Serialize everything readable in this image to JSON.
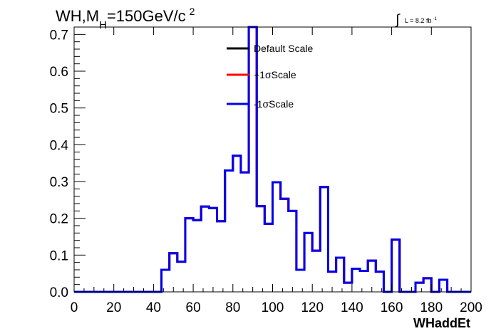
{
  "chart_data": {
    "type": "line",
    "title_main": "WH,M",
    "title_sub": "H",
    "title_rest": "=150GeV/c",
    "title_sup": "2",
    "lumi_label": "L = 8.2 fb",
    "lumi_sup": "-1",
    "xlabel": "WHaddEt",
    "ylabel": "",
    "xlim": [
      0,
      200
    ],
    "ylim": [
      0,
      0.72
    ],
    "x_ticks": [
      "0",
      "20",
      "40",
      "60",
      "80",
      "100",
      "120",
      "140",
      "160",
      "180",
      "200"
    ],
    "y_ticks": [
      "0.0",
      "0.1",
      "0.2",
      "0.3",
      "0.4",
      "0.5",
      "0.6",
      "0.7"
    ],
    "legend_placement": "top-center",
    "bin_width": 4,
    "x": [
      0,
      4,
      8,
      12,
      16,
      20,
      24,
      28,
      32,
      36,
      40,
      44,
      48,
      52,
      56,
      60,
      64,
      68,
      72,
      76,
      80,
      84,
      88,
      92,
      96,
      100,
      104,
      108,
      112,
      116,
      120,
      124,
      128,
      132,
      136,
      140,
      144,
      148,
      152,
      156,
      160,
      164,
      168,
      172,
      176,
      180,
      184,
      188,
      192,
      196
    ],
    "series": [
      {
        "name": "Default Scale",
        "color": "#000000",
        "values": [
          0,
          0,
          0,
          0,
          0,
          0,
          0,
          0,
          0,
          0,
          0,
          0.06,
          0.105,
          0.082,
          0.2,
          0.195,
          0.232,
          0.228,
          0.192,
          0.33,
          0.37,
          0.325,
          0.72,
          0.233,
          0.185,
          0.298,
          0.253,
          0.22,
          0.06,
          0.16,
          0.112,
          0.285,
          0.055,
          0.093,
          0.025,
          0.063,
          0.057,
          0.085,
          0.055,
          0,
          0.142,
          0,
          0,
          0.025,
          0.037,
          0,
          0.033,
          0,
          0,
          0
        ]
      },
      {
        "name": "+1σScale",
        "color": "#ff0000",
        "values": [
          0,
          0,
          0,
          0,
          0,
          0,
          0,
          0,
          0,
          0,
          0,
          0.06,
          0.105,
          0.082,
          0.2,
          0.195,
          0.232,
          0.228,
          0.192,
          0.33,
          0.37,
          0.325,
          0.72,
          0.233,
          0.185,
          0.298,
          0.253,
          0.22,
          0.06,
          0.16,
          0.112,
          0.285,
          0.055,
          0.093,
          0.025,
          0.063,
          0.057,
          0.085,
          0.055,
          0,
          0.142,
          0,
          0,
          0.025,
          0.037,
          0,
          0.033,
          0,
          0,
          0
        ]
      },
      {
        "name": "-1σScale",
        "color": "#0000ee",
        "values": [
          0,
          0,
          0,
          0,
          0,
          0,
          0,
          0,
          0,
          0,
          0,
          0.06,
          0.105,
          0.082,
          0.2,
          0.195,
          0.232,
          0.228,
          0.192,
          0.33,
          0.37,
          0.325,
          0.72,
          0.233,
          0.185,
          0.298,
          0.253,
          0.22,
          0.06,
          0.16,
          0.112,
          0.285,
          0.055,
          0.093,
          0.025,
          0.063,
          0.057,
          0.085,
          0.055,
          0,
          0.142,
          0,
          0,
          0.025,
          0.037,
          0,
          0.033,
          0,
          0,
          0
        ]
      }
    ]
  }
}
